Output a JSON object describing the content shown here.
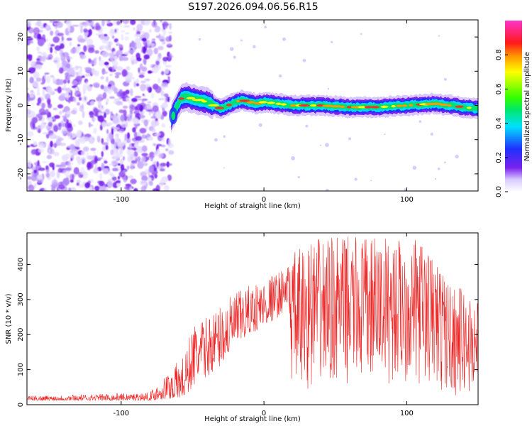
{
  "title": "S197.2026.094.06.56.R15",
  "colors": {
    "snr_line": "#ee2222",
    "speckle": "#7a22ee",
    "frame": "#000000"
  },
  "chart_data": [
    {
      "type": "heatmap",
      "name": "spectrogram",
      "xlabel": "Height of straight line (km)",
      "ylabel": "Frequency (Hz)",
      "xlim": [
        -166,
        150
      ],
      "ylim": [
        -25,
        25
      ],
      "xticks": [
        -100,
        0,
        100
      ],
      "yticks": [
        -20,
        -10,
        0,
        10,
        20
      ],
      "grid": false,
      "noise_region_x": [
        -166,
        -65
      ],
      "signal_onset_x": -65,
      "signal_ridge": {
        "x": [
          -65,
          -62,
          -58,
          -55,
          -50,
          -45,
          -40,
          -35,
          -30,
          -25,
          -20,
          -15,
          -10,
          -5,
          0,
          10,
          20,
          40,
          60,
          80,
          100,
          120,
          150
        ],
        "freq": [
          -4,
          -1,
          2,
          2.5,
          2,
          1.5,
          1,
          0,
          -1,
          0,
          1,
          1.5,
          1,
          0.5,
          1,
          0.5,
          0,
          0,
          -0.5,
          -0.5,
          0,
          0.5,
          -1
        ]
      },
      "colorbar": {
        "label": "Normalized spectral amplitude",
        "range": [
          0,
          1
        ],
        "ticks": [
          "0.0",
          "0.2",
          "0.4",
          "0.6",
          "0.8"
        ]
      }
    },
    {
      "type": "line",
      "name": "snr",
      "xlabel": "Height of straight line (km)",
      "ylabel": "SNR (10 * v/v)",
      "xlim": [
        -166,
        150
      ],
      "ylim": [
        0,
        490
      ],
      "xticks": [
        -100,
        0,
        100
      ],
      "yticks": [
        0,
        100,
        200,
        300,
        400
      ],
      "grid": false,
      "envelope": {
        "x": [
          -166,
          -80,
          -55,
          -50,
          -40,
          -30,
          -20,
          -10,
          0,
          10,
          17,
          20,
          30,
          50,
          70,
          90,
          110,
          120,
          130,
          140,
          150
        ],
        "baseline": [
          12,
          12,
          20,
          50,
          80,
          110,
          160,
          200,
          220,
          250,
          280,
          20,
          40,
          60,
          60,
          60,
          60,
          40,
          30,
          20,
          20
        ],
        "peak": [
          25,
          35,
          150,
          230,
          250,
          290,
          320,
          340,
          360,
          380,
          400,
          430,
          470,
          480,
          480,
          480,
          470,
          420,
          350,
          330,
          300
        ]
      }
    }
  ]
}
